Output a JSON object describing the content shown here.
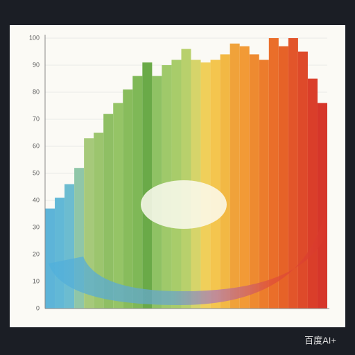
{
  "chart_data": {
    "type": "bar",
    "annotation": "百度AI+",
    "categories": [
      null,
      null,
      null,
      null,
      null,
      null,
      null,
      null,
      null,
      null,
      null,
      null,
      null,
      null,
      null,
      null,
      null,
      null,
      null,
      null,
      null,
      null,
      null,
      null,
      null,
      null,
      null,
      null,
      null
    ],
    "values": [
      37,
      41,
      46,
      52,
      63,
      65,
      72,
      76,
      81,
      86,
      91,
      86,
      90,
      92,
      96,
      92,
      91,
      92,
      94,
      98,
      97,
      94,
      92,
      100,
      97,
      100,
      95,
      85,
      76
    ],
    "colors": [
      "#5db4d8",
      "#62b8d6",
      "#6cbcd0",
      "#8fc6a8",
      "#a6c97a",
      "#9cc56e",
      "#8fbf64",
      "#95c466",
      "#88bc5c",
      "#7fb857",
      "#6aaa48",
      "#8fc264",
      "#9fc96a",
      "#a8cc6a",
      "#b8d06c",
      "#d6d46a",
      "#f0cf5a",
      "#f4c54e",
      "#f2b844",
      "#f0a23a",
      "#f29a36",
      "#ee8a30",
      "#ec7c2c",
      "#ea6e2a",
      "#e66228",
      "#e2552a",
      "#de4a2a",
      "#da3e2a",
      "#d6362a"
    ],
    "ylim": [
      0,
      100
    ],
    "yticks": [
      0,
      10,
      20,
      30,
      40,
      50,
      60,
      70,
      80,
      90,
      100
    ],
    "grid": true
  }
}
